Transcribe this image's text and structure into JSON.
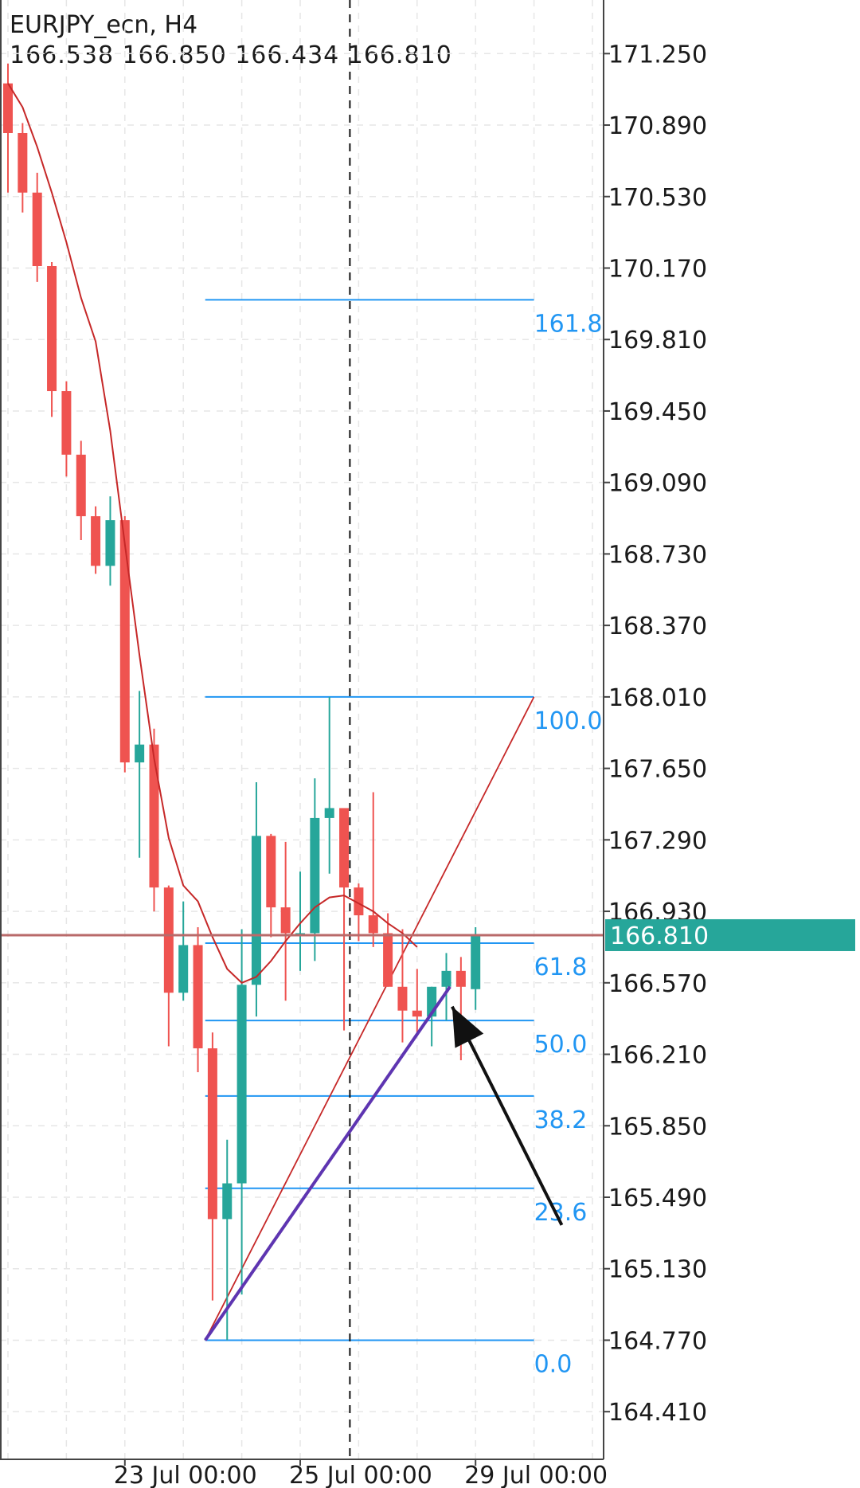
{
  "header": {
    "symbol": "EURJPY_ecn, H4",
    "ohlc": "166.538 166.850 166.434 166.810"
  },
  "colors": {
    "bull": "#26a69a",
    "bear": "#ef5350",
    "ma": "#c62828",
    "fib": "#2196f3",
    "trend": "#5e35b1",
    "price_line": "#b96a6a",
    "price_tag": "#26a69a",
    "grid": "#e6e6e6",
    "arrow": "#111111"
  },
  "chart_data": {
    "type": "candlestick",
    "symbol": "EURJPY_ecn",
    "timeframe": "H4",
    "ylim": [
      164.17,
      171.52
    ],
    "y_ticks": [
      "171.250",
      "170.890",
      "170.530",
      "170.170",
      "169.810",
      "169.450",
      "169.090",
      "168.730",
      "168.370",
      "168.010",
      "167.650",
      "167.290",
      "166.930",
      "166.570",
      "166.210",
      "165.850",
      "165.490",
      "165.130",
      "164.770",
      "164.410"
    ],
    "x_ticks": [
      {
        "label": "23 Jul 00:00",
        "index": 8
      },
      {
        "label": "25 Jul 00:00",
        "index": 20
      },
      {
        "label": "29 Jul 00:00",
        "index": 32
      }
    ],
    "candles": [
      {
        "o": 171.1,
        "h": 171.2,
        "l": 170.55,
        "c": 170.85
      },
      {
        "o": 170.85,
        "h": 170.9,
        "l": 170.45,
        "c": 170.55
      },
      {
        "o": 170.55,
        "h": 170.65,
        "l": 170.1,
        "c": 170.18
      },
      {
        "o": 170.18,
        "h": 170.2,
        "l": 169.42,
        "c": 169.55
      },
      {
        "o": 169.55,
        "h": 169.6,
        "l": 169.12,
        "c": 169.23
      },
      {
        "o": 169.23,
        "h": 169.3,
        "l": 168.8,
        "c": 168.92
      },
      {
        "o": 168.92,
        "h": 168.97,
        "l": 168.63,
        "c": 168.67
      },
      {
        "o": 168.67,
        "h": 169.02,
        "l": 168.57,
        "c": 168.9
      },
      {
        "o": 168.9,
        "h": 168.92,
        "l": 167.63,
        "c": 167.68
      },
      {
        "o": 167.68,
        "h": 168.04,
        "l": 167.2,
        "c": 167.77
      },
      {
        "o": 167.77,
        "h": 167.85,
        "l": 166.93,
        "c": 167.05
      },
      {
        "o": 167.05,
        "h": 167.06,
        "l": 166.25,
        "c": 166.52
      },
      {
        "o": 166.52,
        "h": 166.98,
        "l": 166.48,
        "c": 166.76
      },
      {
        "o": 166.76,
        "h": 166.85,
        "l": 166.12,
        "c": 166.24
      },
      {
        "o": 166.24,
        "h": 166.32,
        "l": 164.97,
        "c": 165.38
      },
      {
        "o": 165.38,
        "h": 165.78,
        "l": 164.77,
        "c": 165.56
      },
      {
        "o": 165.56,
        "h": 166.84,
        "l": 165.0,
        "c": 166.56
      },
      {
        "o": 166.56,
        "h": 167.58,
        "l": 166.4,
        "c": 167.31
      },
      {
        "o": 167.31,
        "h": 167.32,
        "l": 166.8,
        "c": 166.95
      },
      {
        "o": 166.95,
        "h": 167.28,
        "l": 166.48,
        "c": 166.82
      },
      {
        "o": 166.82,
        "h": 167.13,
        "l": 166.63,
        "c": 166.82
      },
      {
        "o": 166.82,
        "h": 167.6,
        "l": 166.68,
        "c": 167.4
      },
      {
        "o": 167.4,
        "h": 168.01,
        "l": 167.12,
        "c": 167.45
      },
      {
        "o": 167.45,
        "h": 167.45,
        "l": 166.33,
        "c": 167.05
      },
      {
        "o": 167.05,
        "h": 167.07,
        "l": 166.78,
        "c": 166.91
      },
      {
        "o": 166.91,
        "h": 167.53,
        "l": 166.75,
        "c": 166.82
      },
      {
        "o": 166.82,
        "h": 166.92,
        "l": 166.55,
        "c": 166.55
      },
      {
        "o": 166.55,
        "h": 166.84,
        "l": 166.27,
        "c": 166.43
      },
      {
        "o": 166.43,
        "h": 166.64,
        "l": 166.32,
        "c": 166.4
      },
      {
        "o": 166.4,
        "h": 166.55,
        "l": 166.25,
        "c": 166.55
      },
      {
        "o": 166.55,
        "h": 166.72,
        "l": 166.38,
        "c": 166.63
      },
      {
        "o": 166.63,
        "h": 166.7,
        "l": 166.18,
        "c": 166.55
      },
      {
        "o": 166.538,
        "h": 166.85,
        "l": 166.434,
        "c": 166.81
      }
    ],
    "moving_average": [
      {
        "i": 0,
        "v": 171.1
      },
      {
        "i": 1,
        "v": 170.98
      },
      {
        "i": 2,
        "v": 170.78
      },
      {
        "i": 3,
        "v": 170.55
      },
      {
        "i": 4,
        "v": 170.3
      },
      {
        "i": 5,
        "v": 170.02
      },
      {
        "i": 6,
        "v": 169.8
      },
      {
        "i": 7,
        "v": 169.35
      },
      {
        "i": 8,
        "v": 168.78
      },
      {
        "i": 9,
        "v": 168.22
      },
      {
        "i": 10,
        "v": 167.7
      },
      {
        "i": 11,
        "v": 167.3
      },
      {
        "i": 12,
        "v": 167.06
      },
      {
        "i": 13,
        "v": 166.98
      },
      {
        "i": 14,
        "v": 166.8
      },
      {
        "i": 15,
        "v": 166.64
      },
      {
        "i": 16,
        "v": 166.57
      },
      {
        "i": 17,
        "v": 166.6
      },
      {
        "i": 18,
        "v": 166.68
      },
      {
        "i": 19,
        "v": 166.78
      },
      {
        "i": 20,
        "v": 166.87
      },
      {
        "i": 21,
        "v": 166.95
      },
      {
        "i": 22,
        "v": 167.0
      },
      {
        "i": 23,
        "v": 167.01
      },
      {
        "i": 24,
        "v": 166.97
      },
      {
        "i": 25,
        "v": 166.93
      },
      {
        "i": 26,
        "v": 166.87
      },
      {
        "i": 27,
        "v": 166.82
      },
      {
        "i": 28,
        "v": 166.75
      }
    ],
    "current_price": "166.810",
    "fibonacci": {
      "start_index": 13.5,
      "end_index": 36,
      "low": 164.77,
      "high": 168.01,
      "levels": [
        {
          "label": "0.0",
          "price": 164.77
        },
        {
          "label": "23.6",
          "price": 165.535
        },
        {
          "label": "38.2",
          "price": 166.0
        },
        {
          "label": "50.0",
          "price": 166.38
        },
        {
          "label": "61.8",
          "price": 166.77
        },
        {
          "label": "100.0",
          "price": 168.01
        },
        {
          "label": "161.8",
          "price": 170.01
        }
      ]
    },
    "fib_diagonal": {
      "x1": 13.5,
      "y1": 164.77,
      "x2": 36,
      "y2": 168.01
    },
    "trendline": {
      "x1": 13.5,
      "y1": 164.77,
      "x2": 30.25,
      "y2": 166.55
    },
    "vertical_marker_index": 23.4,
    "annotation_arrow": {
      "from_index": 37.9,
      "from_price": 165.35,
      "to_index": 30.4,
      "to_price": 166.45
    },
    "grid": true
  }
}
